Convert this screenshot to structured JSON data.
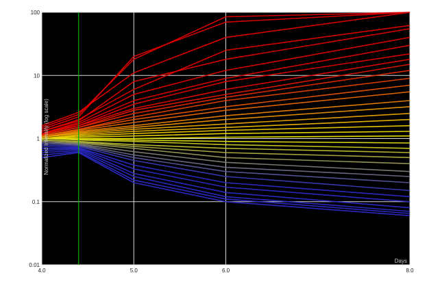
{
  "chart_data": {
    "type": "line",
    "title": "",
    "xlabel": "Days",
    "ylabel": "Normalized Intensity (log scale)",
    "yscale": "log",
    "xlim": [
      4.0,
      8.0
    ],
    "ylim": [
      0.01,
      100
    ],
    "x_ticks": [
      {
        "value": 4.0,
        "label": "4.0"
      },
      {
        "value": 5.0,
        "label": "5.0"
      },
      {
        "value": 6.0,
        "label": "6.0"
      },
      {
        "value": 8.0,
        "label": "8.0"
      }
    ],
    "y_ticks": [
      {
        "value": 0.01,
        "label": "0.01"
      },
      {
        "value": 0.1,
        "label": "0.1"
      },
      {
        "value": 1,
        "label": "1"
      },
      {
        "value": 10,
        "label": "10"
      },
      {
        "value": 100,
        "label": "100"
      }
    ],
    "grid": true,
    "highlight_x": 4.4,
    "x": [
      4.0,
      4.4,
      5.0,
      6.0,
      8.0
    ],
    "color_scale": {
      "low": "#2a2ac8",
      "mid": "#f0f000",
      "high": "#e00000",
      "highlight_line": "#00b000",
      "background": "#000000",
      "grid": "#d9d9d9"
    },
    "series": [
      {
        "values": [
          1.6,
          2.6,
          11,
          40,
          100
        ]
      },
      {
        "values": [
          1.5,
          2.4,
          18,
          85,
          100
        ]
      },
      {
        "values": [
          1.4,
          2.2,
          20,
          70,
          100
        ]
      },
      {
        "values": [
          1.3,
          2.0,
          6,
          25,
          62
        ]
      },
      {
        "values": [
          1.3,
          1.9,
          8,
          18,
          55
        ]
      },
      {
        "values": [
          1.2,
          1.8,
          5,
          12,
          40
        ]
      },
      {
        "values": [
          1.2,
          1.7,
          4,
          9,
          30
        ]
      },
      {
        "values": [
          1.2,
          1.6,
          3.5,
          8,
          22
        ]
      },
      {
        "values": [
          1.2,
          1.6,
          3,
          6,
          18
        ]
      },
      {
        "values": [
          1.15,
          1.5,
          2.8,
          5,
          15
        ]
      },
      {
        "values": [
          1.15,
          1.5,
          2.5,
          4.5,
          12
        ]
      },
      {
        "values": [
          1.1,
          1.4,
          2.2,
          4,
          9
        ]
      },
      {
        "values": [
          1.1,
          1.4,
          2,
          3.2,
          7
        ]
      },
      {
        "values": [
          1.1,
          1.35,
          1.8,
          2.8,
          5.5
        ]
      },
      {
        "values": [
          1.05,
          1.3,
          1.6,
          2.3,
          4
        ]
      },
      {
        "values": [
          1.05,
          1.25,
          1.5,
          2,
          3.2
        ]
      },
      {
        "values": [
          1.05,
          1.2,
          1.4,
          1.7,
          2.5
        ]
      },
      {
        "values": [
          1.0,
          1.15,
          1.3,
          1.5,
          2
        ]
      },
      {
        "values": [
          1.0,
          1.1,
          1.2,
          1.35,
          1.6
        ]
      },
      {
        "values": [
          1.0,
          1.05,
          1.1,
          1.2,
          1.3
        ]
      },
      {
        "values": [
          1.0,
          1.0,
          1.0,
          1.05,
          1.1
        ]
      },
      {
        "values": [
          1.0,
          0.98,
          0.95,
          0.9,
          0.85
        ]
      },
      {
        "values": [
          1.0,
          0.95,
          0.9,
          0.8,
          0.7
        ]
      },
      {
        "values": [
          0.95,
          0.9,
          0.8,
          0.7,
          0.6
        ]
      },
      {
        "values": [
          0.95,
          0.88,
          0.75,
          0.6,
          0.5
        ]
      },
      {
        "values": [
          0.9,
          0.85,
          0.7,
          0.5,
          0.4
        ]
      },
      {
        "values": [
          0.9,
          0.82,
          0.62,
          0.42,
          0.3
        ]
      },
      {
        "values": [
          0.85,
          0.8,
          0.55,
          0.35,
          0.25
        ]
      },
      {
        "values": [
          0.85,
          0.78,
          0.5,
          0.3,
          0.2
        ]
      },
      {
        "values": [
          0.8,
          0.75,
          0.45,
          0.25,
          0.15
        ]
      },
      {
        "values": [
          0.75,
          0.72,
          0.38,
          0.2,
          0.12
        ]
      },
      {
        "values": [
          0.7,
          0.7,
          0.33,
          0.17,
          0.1
        ]
      },
      {
        "values": [
          0.65,
          0.68,
          0.28,
          0.14,
          0.08
        ]
      },
      {
        "values": [
          0.6,
          0.65,
          0.25,
          0.12,
          0.07
        ]
      },
      {
        "values": [
          0.55,
          0.62,
          0.22,
          0.11,
          0.065
        ]
      },
      {
        "values": [
          0.5,
          0.6,
          0.2,
          0.1,
          0.06
        ]
      }
    ]
  }
}
